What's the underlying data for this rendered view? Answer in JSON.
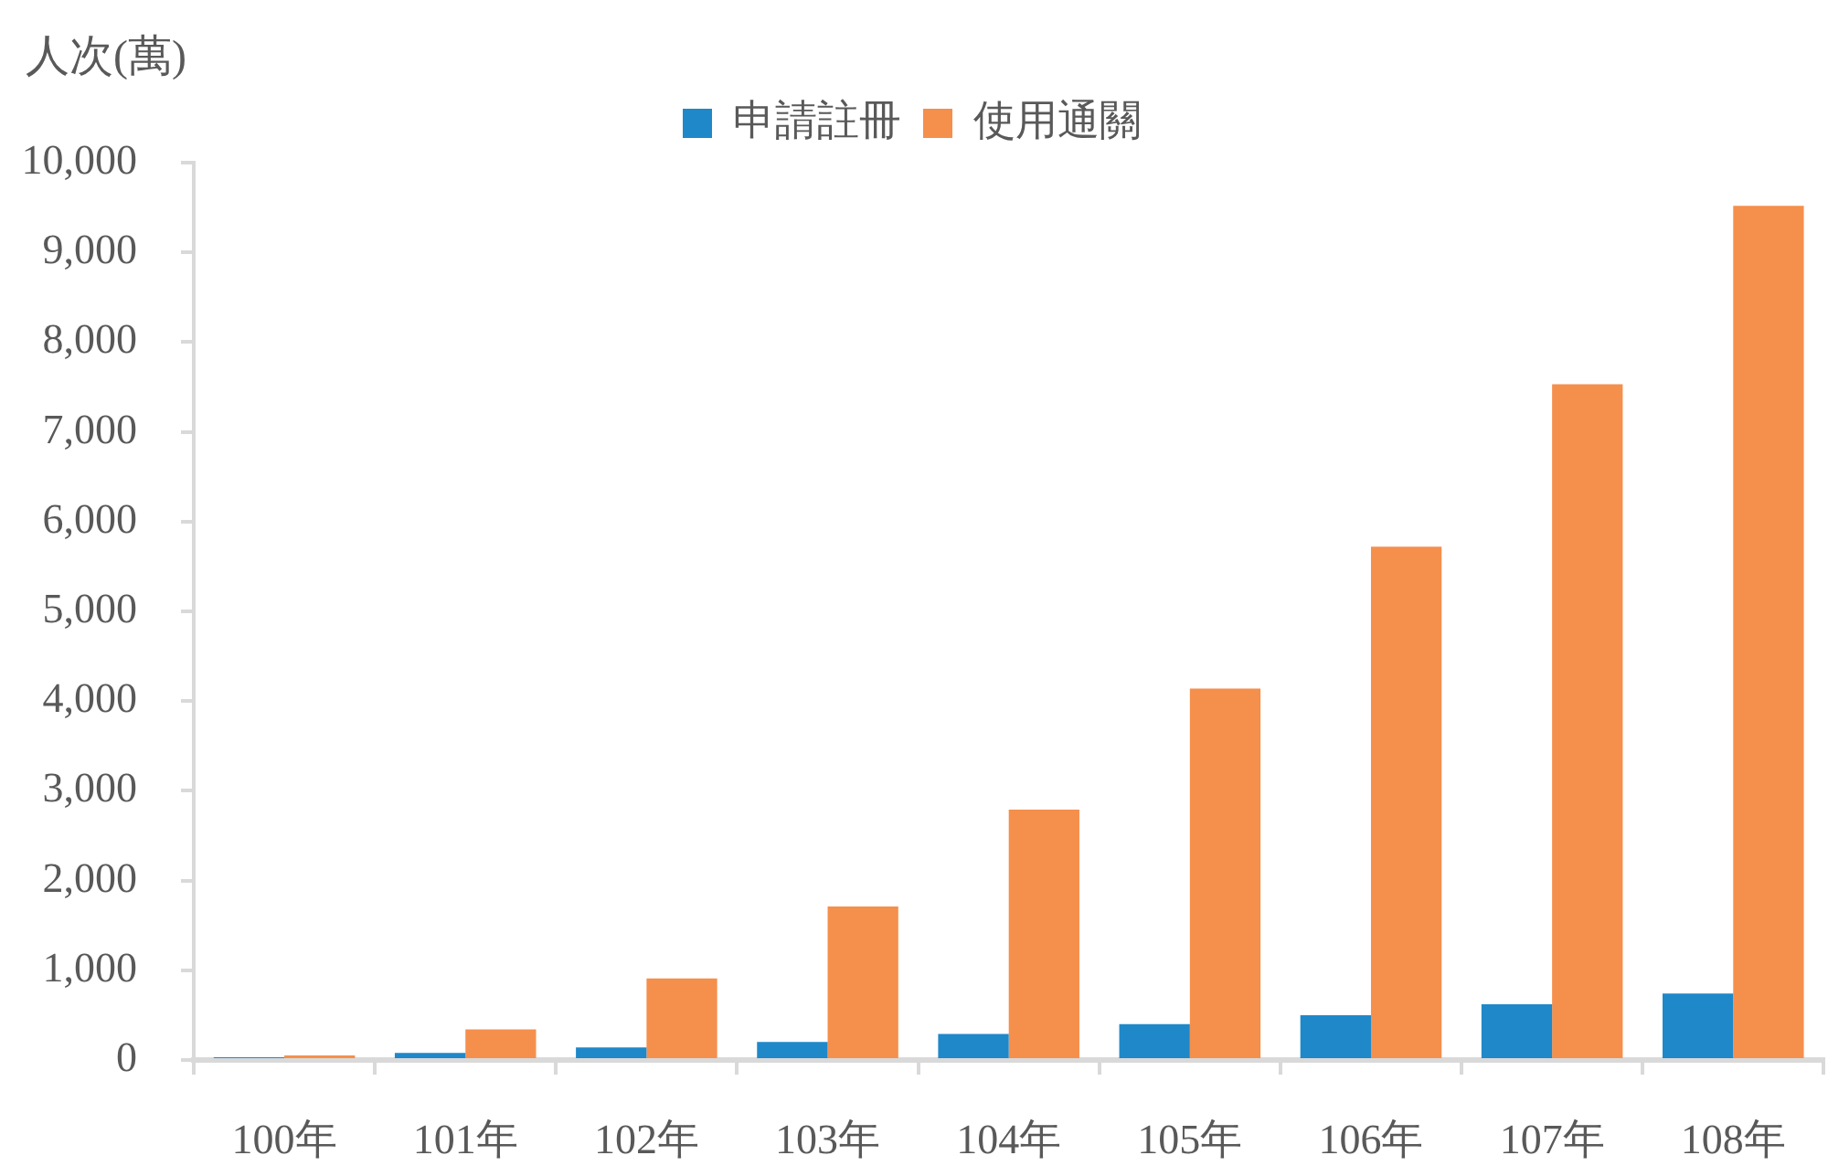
{
  "chart_data": {
    "type": "bar",
    "ylabel": "人次(萬)",
    "categories": [
      "100年",
      "101年",
      "102年",
      "103年",
      "104年",
      "105年",
      "106年",
      "107年",
      "108年"
    ],
    "series": [
      {
        "name": "申請註冊",
        "color": "#1f88c9",
        "values": [
          30,
          80,
          140,
          200,
          290,
          400,
          500,
          620,
          740
        ]
      },
      {
        "name": "使用通關",
        "color": "#f58f4c",
        "values": [
          50,
          340,
          910,
          1710,
          2790,
          4140,
          5720,
          7530,
          9520
        ]
      }
    ],
    "ylim": [
      0,
      10000
    ],
    "yticks": [
      0,
      {
        "value": 1000,
        "label": "1,000"
      },
      {
        "value": 2000,
        "label": "2,000"
      },
      {
        "value": 3000,
        "label": "3,000"
      },
      {
        "value": 4000,
        "label": "4,000"
      },
      {
        "value": 5000,
        "label": "5,000"
      },
      {
        "value": 6000,
        "label": "6,000"
      },
      {
        "value": 7000,
        "label": "7,000"
      },
      {
        "value": 8000,
        "label": "8,000"
      },
      {
        "value": 9000,
        "label": "9,000"
      },
      {
        "value": 10000,
        "label": "10,000"
      }
    ],
    "grid": false,
    "legend": "top"
  }
}
